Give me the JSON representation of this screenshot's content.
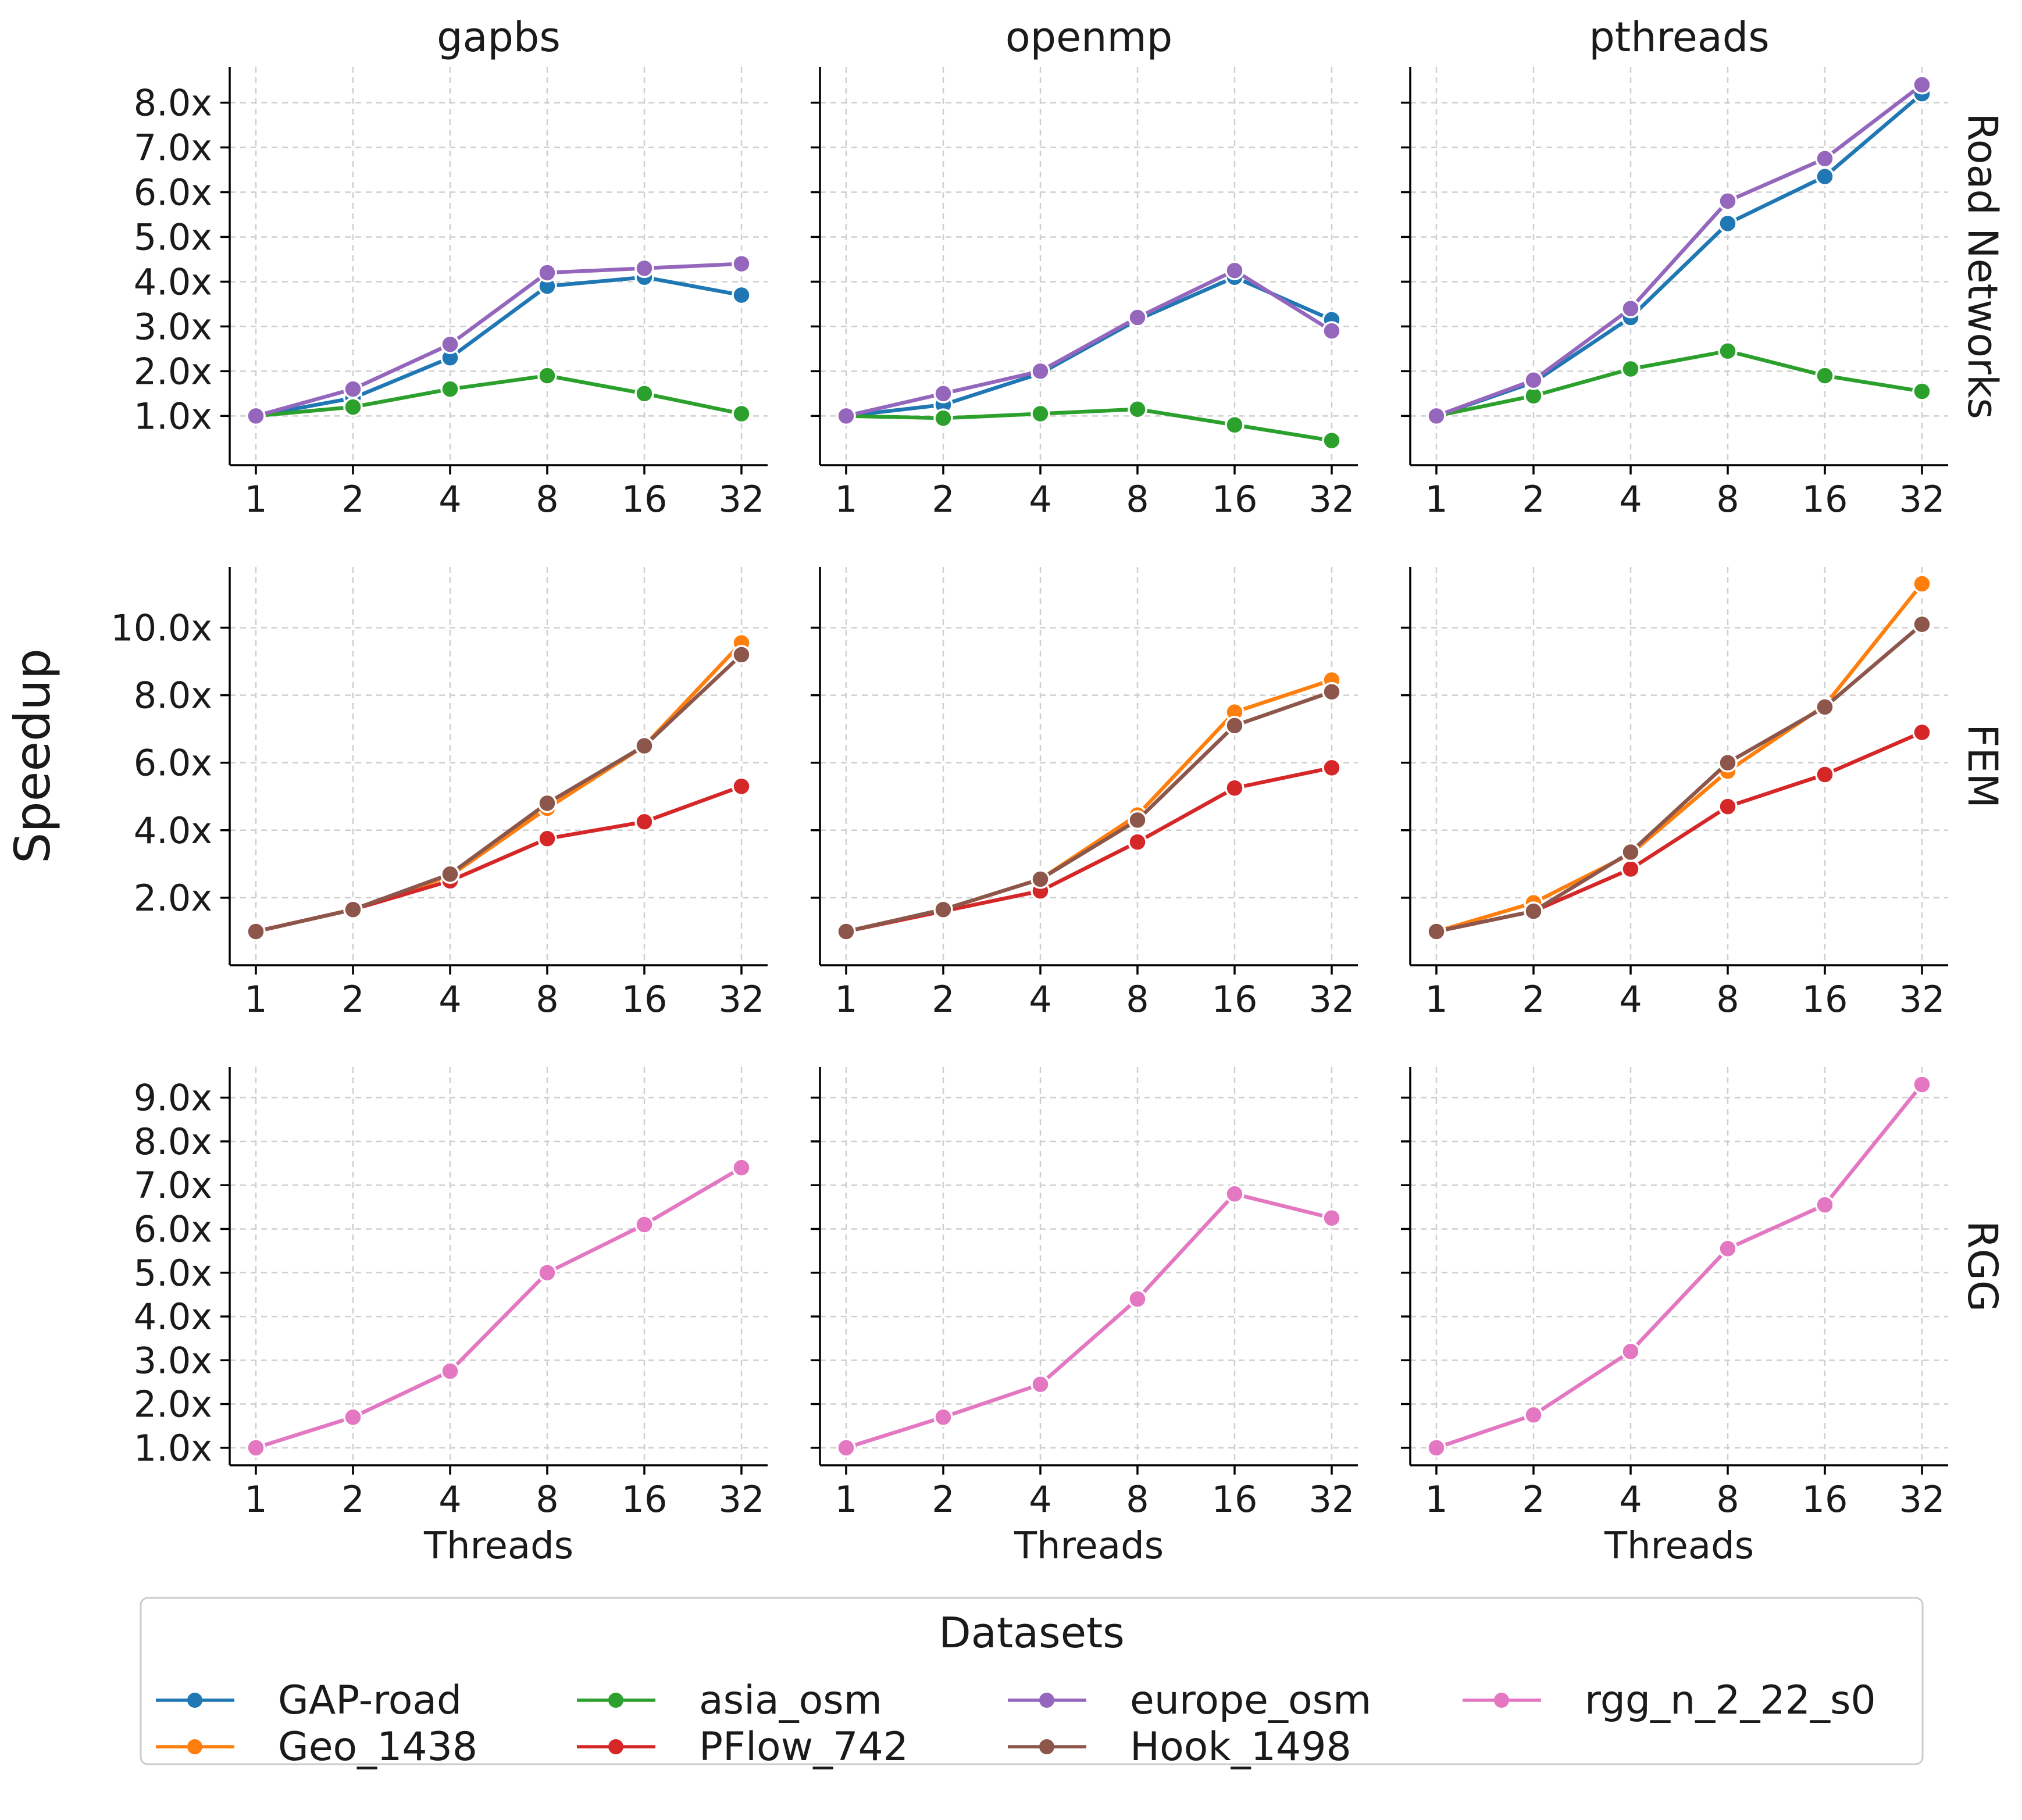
{
  "figure": {
    "ylabel": "Speedup",
    "xlabel": "Threads",
    "columns": [
      "gapbs",
      "openmp",
      "pthreads"
    ],
    "rows": [
      "Road Networks",
      "FEM",
      "RGG"
    ]
  },
  "legend": {
    "title": "Datasets",
    "entries": [
      {
        "label": "GAP-road",
        "color": "#1f77b4"
      },
      {
        "label": "Geo_1438",
        "color": "#ff7f0e"
      },
      {
        "label": "asia_osm",
        "color": "#2ca02c"
      },
      {
        "label": "PFlow_742",
        "color": "#d62728"
      },
      {
        "label": "europe_osm",
        "color": "#9467bd"
      },
      {
        "label": "Hook_1498",
        "color": "#8c564b"
      },
      {
        "label": "rgg_n_2_22_s0",
        "color": "#e377c2"
      }
    ]
  },
  "chart_data": [
    {
      "type": "line",
      "row": "Road Networks",
      "column": "gapbs",
      "xlabel": "",
      "ylabel": "Speedup",
      "x": [
        "1",
        "2",
        "4",
        "8",
        "16",
        "32"
      ],
      "y_ticks": [
        "1.0x",
        "2.0x",
        "3.0x",
        "4.0x",
        "5.0x",
        "6.0x",
        "7.0x",
        "8.0x"
      ],
      "ylim": [
        -0.1,
        8.8
      ],
      "series": [
        {
          "name": "GAP-road",
          "color": "#1f77b4",
          "values": [
            1.0,
            1.4,
            2.3,
            3.9,
            4.1,
            3.7
          ]
        },
        {
          "name": "asia_osm",
          "color": "#2ca02c",
          "values": [
            1.0,
            1.2,
            1.6,
            1.9,
            1.5,
            1.05
          ]
        },
        {
          "name": "europe_osm",
          "color": "#9467bd",
          "values": [
            1.0,
            1.6,
            2.6,
            4.2,
            4.3,
            4.4
          ]
        }
      ]
    },
    {
      "type": "line",
      "row": "Road Networks",
      "column": "openmp",
      "xlabel": "",
      "ylabel": "",
      "x": [
        "1",
        "2",
        "4",
        "8",
        "16",
        "32"
      ],
      "y_ticks": [],
      "ylim": [
        -0.1,
        8.8
      ],
      "series": [
        {
          "name": "GAP-road",
          "color": "#1f77b4",
          "values": [
            1.0,
            1.25,
            1.95,
            3.15,
            4.1,
            3.15
          ]
        },
        {
          "name": "asia_osm",
          "color": "#2ca02c",
          "values": [
            1.0,
            0.95,
            1.05,
            1.15,
            0.8,
            0.45
          ]
        },
        {
          "name": "europe_osm",
          "color": "#9467bd",
          "values": [
            1.0,
            1.5,
            2.0,
            3.2,
            4.25,
            2.9
          ]
        }
      ]
    },
    {
      "type": "line",
      "row": "Road Networks",
      "column": "pthreads",
      "xlabel": "",
      "ylabel": "",
      "x": [
        "1",
        "2",
        "4",
        "8",
        "16",
        "32"
      ],
      "y_ticks": [],
      "ylim": [
        -0.1,
        8.8
      ],
      "series": [
        {
          "name": "GAP-road",
          "color": "#1f77b4",
          "values": [
            1.0,
            1.75,
            3.2,
            5.3,
            6.35,
            8.2
          ]
        },
        {
          "name": "asia_osm",
          "color": "#2ca02c",
          "values": [
            1.0,
            1.45,
            2.05,
            2.45,
            1.9,
            1.55
          ]
        },
        {
          "name": "europe_osm",
          "color": "#9467bd",
          "values": [
            1.0,
            1.8,
            3.4,
            5.8,
            6.75,
            8.4
          ]
        }
      ]
    },
    {
      "type": "line",
      "row": "FEM",
      "column": "gapbs",
      "xlabel": "",
      "ylabel": "Speedup",
      "x": [
        "1",
        "2",
        "4",
        "8",
        "16",
        "32"
      ],
      "y_ticks": [
        "2.0x",
        "4.0x",
        "6.0x",
        "8.0x",
        "10.0x"
      ],
      "ylim": [
        0.0,
        11.8
      ],
      "series": [
        {
          "name": "Geo_1438",
          "color": "#ff7f0e",
          "values": [
            1.0,
            1.65,
            2.65,
            4.65,
            6.5,
            9.55
          ]
        },
        {
          "name": "PFlow_742",
          "color": "#d62728",
          "values": [
            1.0,
            1.65,
            2.5,
            3.75,
            4.25,
            5.3
          ]
        },
        {
          "name": "Hook_1498",
          "color": "#8c564b",
          "values": [
            1.0,
            1.65,
            2.7,
            4.8,
            6.5,
            9.2
          ]
        }
      ]
    },
    {
      "type": "line",
      "row": "FEM",
      "column": "openmp",
      "xlabel": "",
      "ylabel": "",
      "x": [
        "1",
        "2",
        "4",
        "8",
        "16",
        "32"
      ],
      "y_ticks": [],
      "ylim": [
        0.0,
        11.8
      ],
      "series": [
        {
          "name": "Geo_1438",
          "color": "#ff7f0e",
          "values": [
            1.0,
            1.65,
            2.55,
            4.45,
            7.5,
            8.45
          ]
        },
        {
          "name": "PFlow_742",
          "color": "#d62728",
          "values": [
            1.0,
            1.6,
            2.2,
            3.65,
            5.25,
            5.85
          ]
        },
        {
          "name": "Hook_1498",
          "color": "#8c564b",
          "values": [
            1.0,
            1.65,
            2.55,
            4.3,
            7.1,
            8.1
          ]
        }
      ]
    },
    {
      "type": "line",
      "row": "FEM",
      "column": "pthreads",
      "xlabel": "",
      "ylabel": "",
      "x": [
        "1",
        "2",
        "4",
        "8",
        "16",
        "32"
      ],
      "y_ticks": [],
      "ylim": [
        0.0,
        11.8
      ],
      "series": [
        {
          "name": "Geo_1438",
          "color": "#ff7f0e",
          "values": [
            1.0,
            1.85,
            3.3,
            5.75,
            7.7,
            11.3
          ]
        },
        {
          "name": "PFlow_742",
          "color": "#d62728",
          "values": [
            1.0,
            1.6,
            2.85,
            4.7,
            5.65,
            6.9
          ]
        },
        {
          "name": "Hook_1498",
          "color": "#8c564b",
          "values": [
            1.0,
            1.6,
            3.35,
            6.0,
            7.65,
            10.1
          ]
        }
      ]
    },
    {
      "type": "line",
      "row": "RGG",
      "column": "gapbs",
      "xlabel": "Threads",
      "ylabel": "Speedup",
      "x": [
        "1",
        "2",
        "4",
        "8",
        "16",
        "32"
      ],
      "y_ticks": [
        "1.0x",
        "2.0x",
        "3.0x",
        "4.0x",
        "5.0x",
        "6.0x",
        "7.0x",
        "8.0x",
        "9.0x"
      ],
      "ylim": [
        0.6,
        9.7
      ],
      "series": [
        {
          "name": "rgg_n_2_22_s0",
          "color": "#e377c2",
          "values": [
            1.0,
            1.7,
            2.75,
            5.0,
            6.1,
            7.4
          ]
        }
      ]
    },
    {
      "type": "line",
      "row": "RGG",
      "column": "openmp",
      "xlabel": "Threads",
      "ylabel": "",
      "x": [
        "1",
        "2",
        "4",
        "8",
        "16",
        "32"
      ],
      "y_ticks": [],
      "ylim": [
        0.6,
        9.7
      ],
      "series": [
        {
          "name": "rgg_n_2_22_s0",
          "color": "#e377c2",
          "values": [
            1.0,
            1.7,
            2.45,
            4.4,
            6.8,
            6.25
          ]
        }
      ]
    },
    {
      "type": "line",
      "row": "RGG",
      "column": "pthreads",
      "xlabel": "Threads",
      "ylabel": "",
      "x": [
        "1",
        "2",
        "4",
        "8",
        "16",
        "32"
      ],
      "y_ticks": [],
      "ylim": [
        0.6,
        9.7
      ],
      "series": [
        {
          "name": "rgg_n_2_22_s0",
          "color": "#e377c2",
          "values": [
            1.0,
            1.75,
            3.2,
            5.55,
            6.55,
            9.3
          ]
        }
      ]
    }
  ]
}
